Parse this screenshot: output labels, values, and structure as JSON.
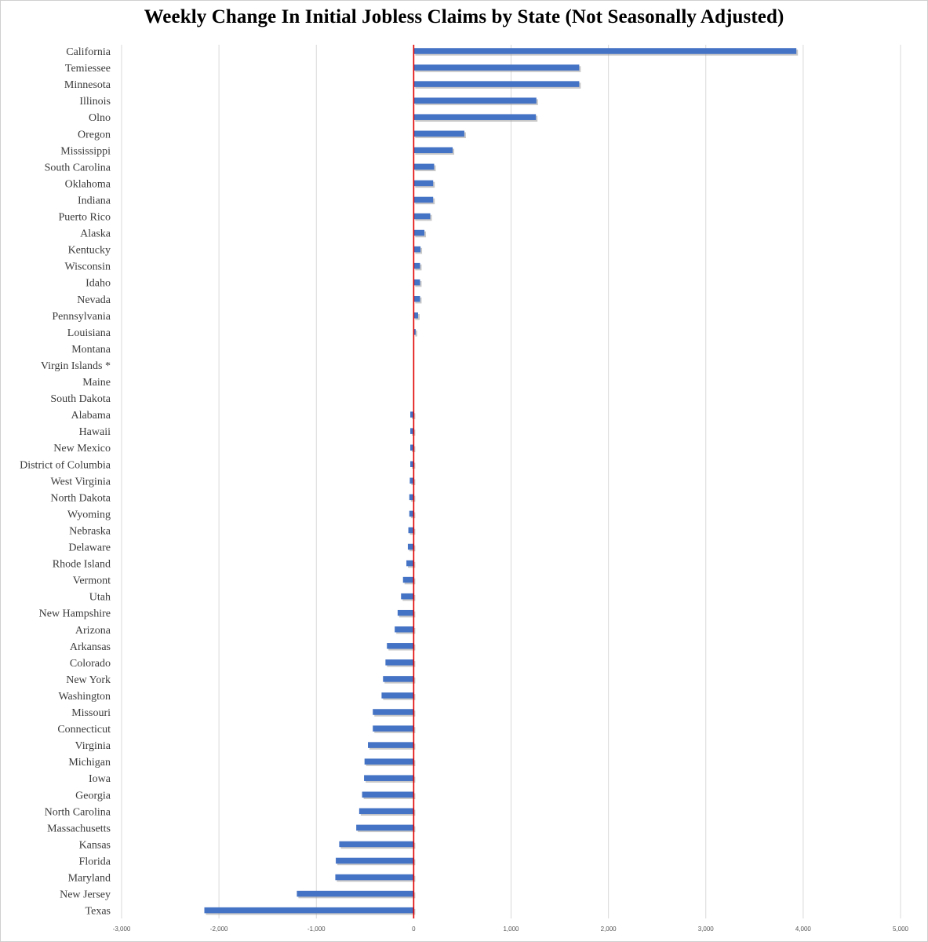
{
  "chart_data": {
    "type": "bar",
    "orientation": "horizontal",
    "title": "Weekly Change In Initial Jobless Claims by State (Not Seasonally Adjusted)",
    "xlabel": "",
    "ylabel": "",
    "xlim": [
      -3000,
      5000
    ],
    "xticks": [
      -3000,
      -2000,
      -1000,
      0,
      1000,
      2000,
      3000,
      4000,
      5000
    ],
    "xtick_labels": [
      "-3,000",
      "-2,000",
      "-1,000",
      "0",
      "1,000",
      "2,000",
      "3,000",
      "4,000",
      "5,000"
    ],
    "grid": "vertical",
    "legend": "none",
    "bar_color": "#4472C4",
    "zero_line_color": "#E00000",
    "categories": [
      "California",
      "Temiessee",
      "Minnesota",
      "Illinois",
      "Olno",
      "Oregon",
      "Mississippi",
      "South Carolina",
      "Oklahoma",
      "Indiana",
      "Puerto Rico",
      "Alaska",
      "Kentucky",
      "Wisconsin",
      "Idaho",
      "Nevada",
      "Pennsylvania",
      "Louisiana",
      "Montana",
      "Virgin Islands *",
      "Maine",
      "South Dakota",
      "Alabama",
      "Hawaii",
      "New Mexico",
      "District of Columbia",
      "West Virginia",
      "North Dakota",
      "Wyoming",
      "Nebraska",
      "Delaware",
      "Rhode Island",
      "Vermont",
      "Utah",
      "New Hampshire",
      "Arizona",
      "Arkansas",
      "Colorado",
      "New York",
      "Washington",
      "Missouri",
      "Connecticut",
      "Virginia",
      "Michigan",
      "Iowa",
      "Georgia",
      "North Carolina",
      "Massachusetts",
      "Kansas",
      "Florida",
      "Maryland",
      "New Jersey",
      "Texas"
    ],
    "values": [
      3930,
      1700,
      1700,
      1260,
      1255,
      520,
      400,
      210,
      200,
      200,
      170,
      110,
      70,
      65,
      65,
      65,
      45,
      20,
      0,
      0,
      0,
      0,
      -35,
      -35,
      -35,
      -35,
      -40,
      -45,
      -45,
      -55,
      -60,
      -75,
      -110,
      -130,
      -165,
      -195,
      -275,
      -290,
      -315,
      -330,
      -420,
      -420,
      -470,
      -505,
      -510,
      -530,
      -560,
      -590,
      -765,
      -800,
      -805,
      -1200,
      -2150
    ]
  }
}
